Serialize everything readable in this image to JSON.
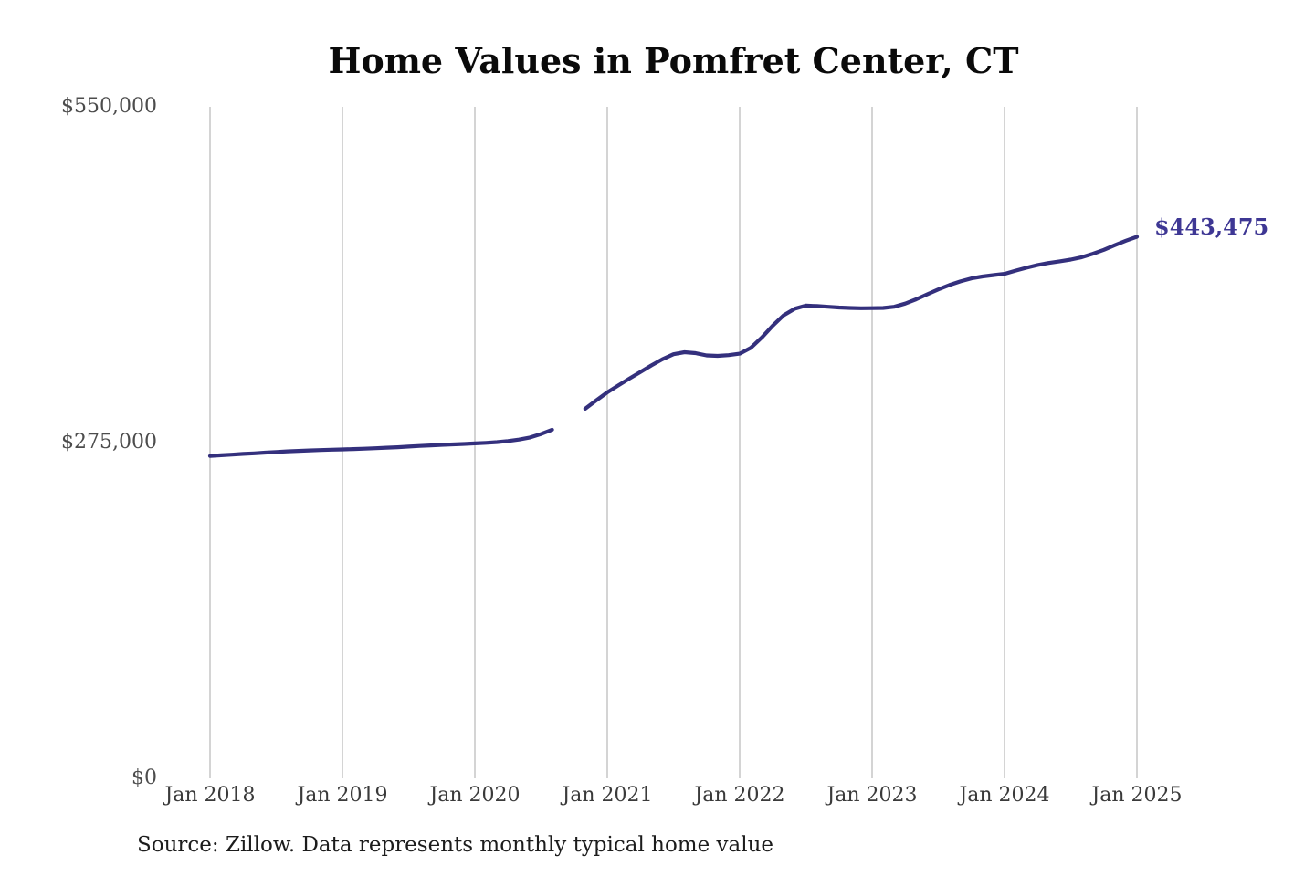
{
  "chart_data": {
    "type": "line",
    "title": "Home Values in Pomfret Center, CT",
    "xlabel": "",
    "ylabel": "",
    "ylim": [
      0,
      550000
    ],
    "grid": "vertical-only",
    "legend": "none",
    "x_start": "Jan 2018",
    "x_interval": "month",
    "x_ticks": [
      {
        "label": "Jan 2018",
        "month_index": 0
      },
      {
        "label": "Jan 2019",
        "month_index": 12
      },
      {
        "label": "Jan 2020",
        "month_index": 24
      },
      {
        "label": "Jan 2021",
        "month_index": 36
      },
      {
        "label": "Jan 2022",
        "month_index": 48
      },
      {
        "label": "Jan 2023",
        "month_index": 60
      },
      {
        "label": "Jan 2024",
        "month_index": 72
      },
      {
        "label": "Jan 2025",
        "month_index": 84
      }
    ],
    "y_ticks": [
      {
        "label": "$0",
        "value": 0
      },
      {
        "label": "$275,000",
        "value": 275000
      },
      {
        "label": "$550,000",
        "value": 550000
      }
    ],
    "series": {
      "values": [
        264000,
        264600,
        265100,
        265700,
        266200,
        266800,
        267300,
        267800,
        268200,
        268600,
        268900,
        269200,
        269400,
        269700,
        270000,
        270400,
        270800,
        271200,
        271700,
        272200,
        272700,
        273100,
        273500,
        273900,
        274300,
        274800,
        275400,
        276300,
        277500,
        279200,
        282000,
        285500,
        null,
        null,
        302700,
        309500,
        316100,
        321800,
        327400,
        332800,
        338200,
        343200,
        347300,
        349000,
        348200,
        346400,
        346000,
        346600,
        347800,
        352500,
        361000,
        370800,
        379300,
        384600,
        387200,
        386800,
        386200,
        385600,
        385200,
        385000,
        385100,
        385200,
        386200,
        388800,
        392300,
        396400,
        400400,
        404000,
        407000,
        409400,
        411000,
        412100,
        413200,
        415800,
        418200,
        420400,
        422100,
        423400,
        424800,
        426800,
        429600,
        432800,
        436600,
        440300,
        443475
      ]
    },
    "end_label": "$443,475",
    "latest_value": 443475,
    "colors": {
      "line": "#34307d",
      "annotation": "#3e3794",
      "gridline": "#c6c6c6",
      "title": "#0a0a0a",
      "y_label": "#4c4c4c",
      "x_label": "#3a3a3a",
      "source": "#1c1c1c",
      "background": "#ffffff"
    }
  },
  "source_note": "Source: Zillow. Data represents monthly typical home value"
}
